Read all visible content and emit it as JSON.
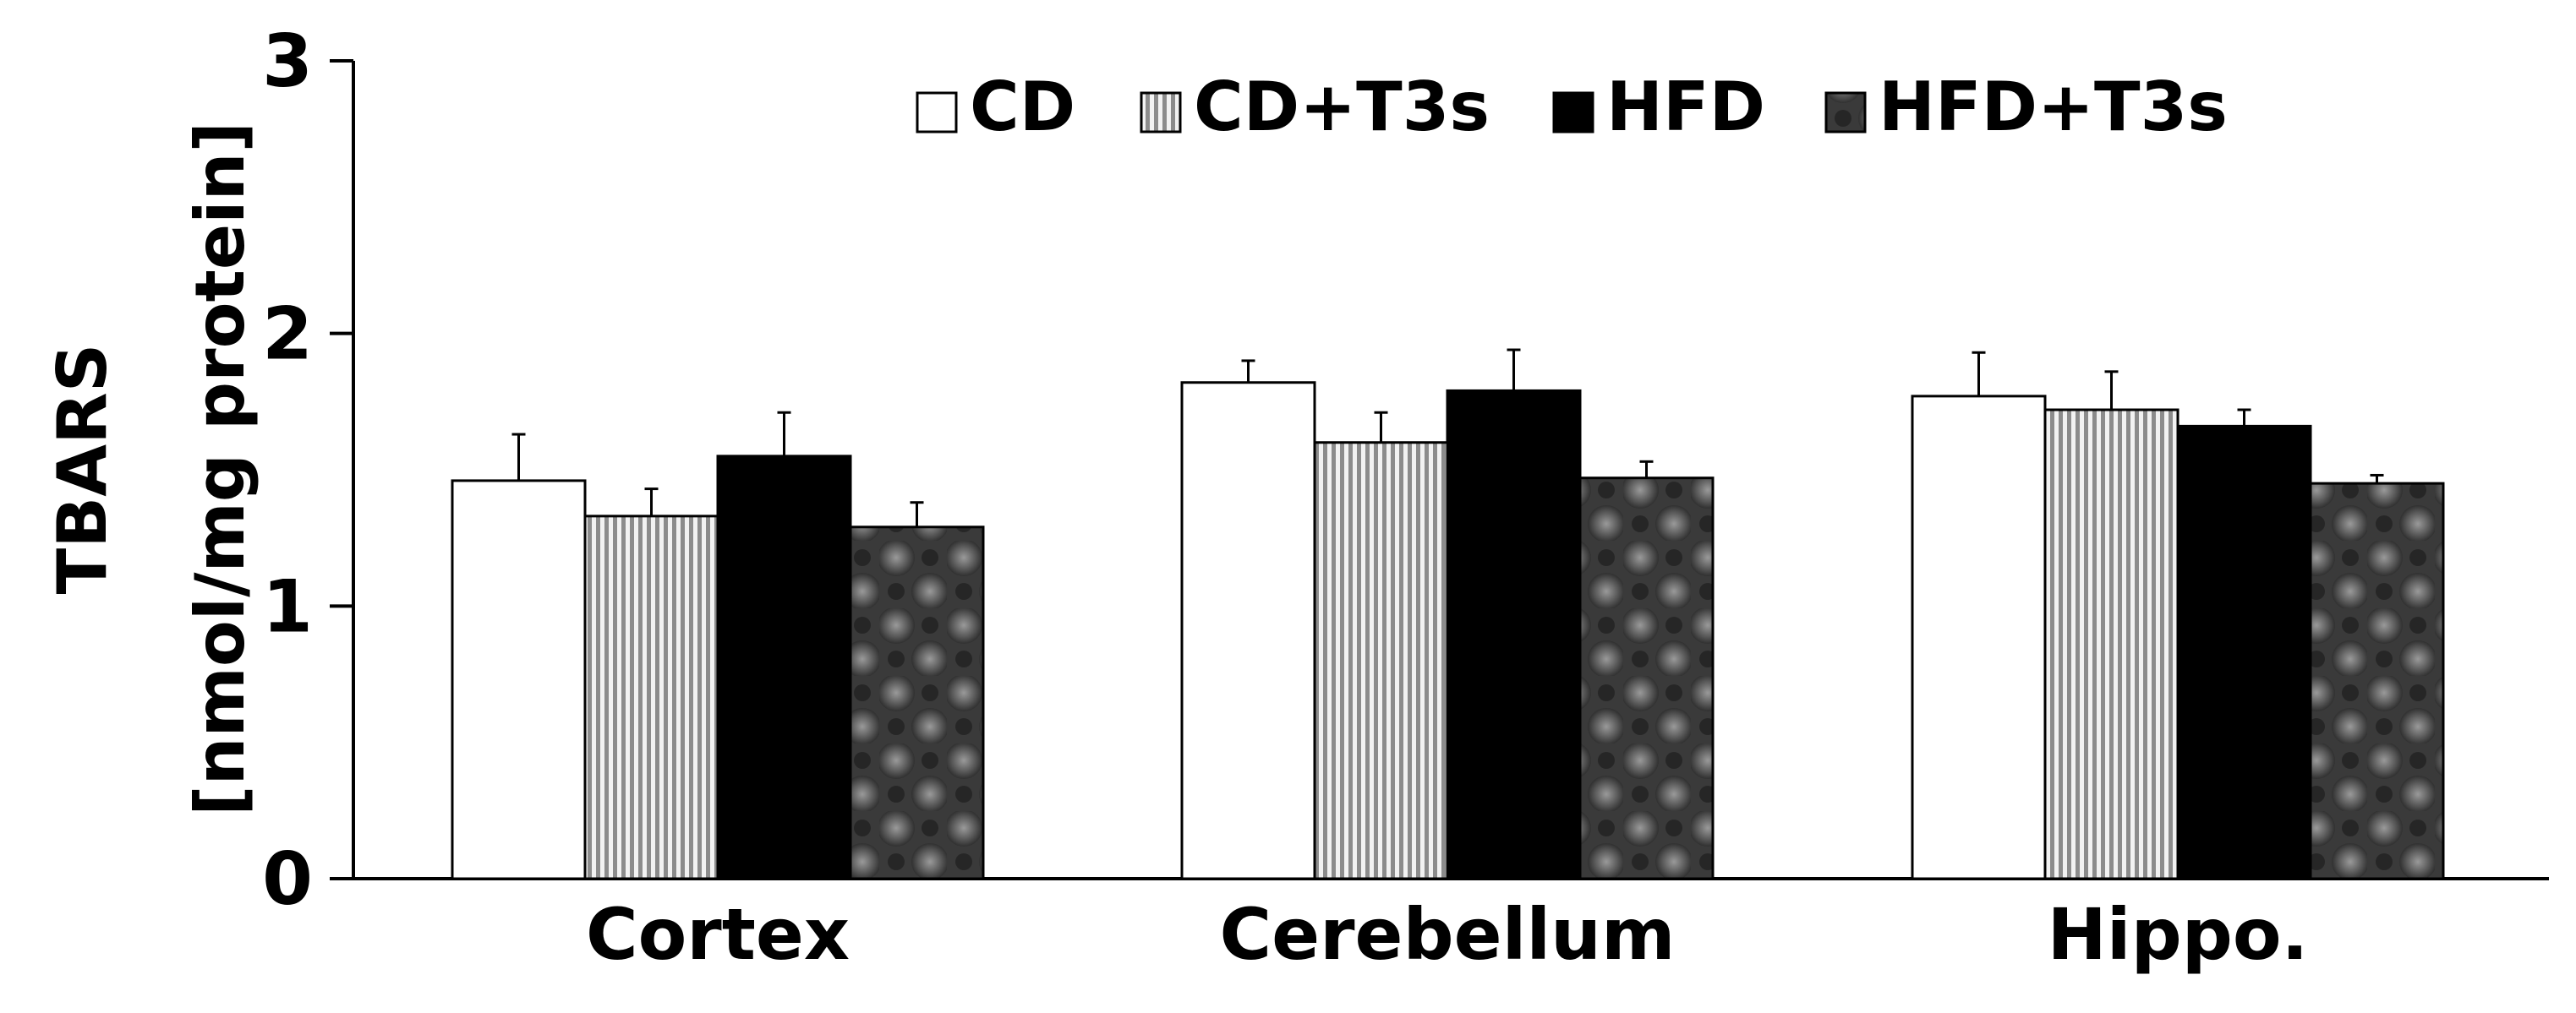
{
  "chart_data": {
    "type": "bar",
    "title": "",
    "xlabel": "",
    "ylabel_line1": "TBARS",
    "ylabel_line2": "[nmol/mg protein]",
    "ylim": [
      0,
      3
    ],
    "yticks": [
      "0",
      "1",
      "2",
      "3"
    ],
    "categories": [
      "Cortex",
      "Cerebellum",
      "Hippo."
    ],
    "legend_position": "top",
    "series": [
      {
        "name": "CD",
        "values": [
          1.46,
          1.82,
          1.77
        ],
        "errors": [
          0.17,
          0.08,
          0.16
        ],
        "pattern": "white"
      },
      {
        "name": "CD+T3s",
        "values": [
          1.33,
          1.6,
          1.72
        ],
        "errors": [
          0.1,
          0.11,
          0.14
        ],
        "pattern": "stripes"
      },
      {
        "name": "HFD",
        "values": [
          1.55,
          1.79,
          1.66
        ],
        "errors": [
          0.16,
          0.15,
          0.06
        ],
        "pattern": "black"
      },
      {
        "name": "HFD+T3s",
        "values": [
          1.29,
          1.47,
          1.45
        ],
        "errors": [
          0.09,
          0.06,
          0.03
        ],
        "pattern": "checker"
      }
    ]
  }
}
